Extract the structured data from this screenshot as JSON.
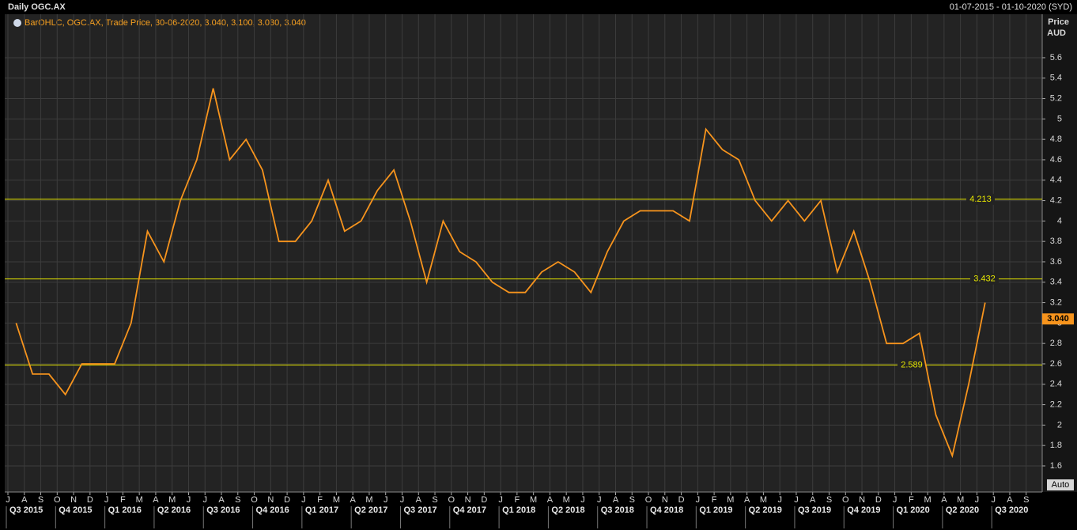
{
  "chart_data": {
    "type": "line",
    "title": "Daily OGC.AX",
    "date_range": "01-07-2015 - 01-10-2020 (SYD)",
    "legend_text": "BarOHLC, OGC.AX, Trade Price, 30-06-2020, 3.040, 3.100, 3.030, 3.040",
    "y_label": "Price",
    "y_unit": "AUD",
    "scale_mode": "Auto",
    "categories": [
      "J",
      "A",
      "S",
      "O",
      "N",
      "D",
      "J",
      "F",
      "M",
      "A",
      "M",
      "J",
      "J",
      "A",
      "S",
      "O",
      "N",
      "D",
      "J",
      "F",
      "M",
      "A",
      "M",
      "J",
      "J",
      "A",
      "S",
      "O",
      "N",
      "D",
      "J",
      "F",
      "M",
      "A",
      "M",
      "J",
      "J",
      "A",
      "S",
      "O",
      "N",
      "D",
      "J",
      "F",
      "M",
      "A",
      "M",
      "J",
      "J",
      "A",
      "S",
      "O",
      "N",
      "D",
      "J",
      "F",
      "M",
      "A",
      "M",
      "J",
      "J",
      "A",
      "S"
    ],
    "quarters": [
      "Q3 2015",
      "Q4 2015",
      "Q1 2016",
      "Q2 2016",
      "Q3 2016",
      "Q4 2016",
      "Q1 2017",
      "Q2 2017",
      "Q3 2017",
      "Q4 2017",
      "Q1 2018",
      "Q2 2018",
      "Q3 2018",
      "Q4 2018",
      "Q1 2019",
      "Q2 2019",
      "Q3 2019",
      "Q4 2019",
      "Q1 2020",
      "Q2 2020",
      "Q3 2020"
    ],
    "series": [
      {
        "name": "OGC.AX",
        "color": "#f7941d",
        "values": [
          3.0,
          2.5,
          2.5,
          2.3,
          2.6,
          2.6,
          2.6,
          3.0,
          3.9,
          3.6,
          4.2,
          4.6,
          5.3,
          4.6,
          4.8,
          4.5,
          3.8,
          3.8,
          4.0,
          4.4,
          3.9,
          4.0,
          4.3,
          4.5,
          4.0,
          3.4,
          4.0,
          3.7,
          3.6,
          3.4,
          3.3,
          3.3,
          3.5,
          3.6,
          3.5,
          3.3,
          3.7,
          4.0,
          4.1,
          4.1,
          4.1,
          4.0,
          4.9,
          4.7,
          4.6,
          4.2,
          4.0,
          4.2,
          4.0,
          4.2,
          3.5,
          3.9,
          3.4,
          2.8,
          2.8,
          2.9,
          2.1,
          1.7,
          2.4,
          3.2,
          null,
          null,
          null
        ]
      }
    ],
    "hlines": [
      {
        "value": 4.213,
        "color": "#e6e600"
      },
      {
        "value": 3.432,
        "color": "#e6e600"
      },
      {
        "value": 2.589,
        "color": "#e6e600"
      }
    ],
    "last": {
      "value": 3.04,
      "label": "3.040",
      "color": "#f7941d"
    },
    "ylim": [
      1.344,
      6.026
    ],
    "yticks": [
      1.6,
      1.8,
      2,
      2.2,
      2.4,
      2.6,
      2.8,
      3,
      3.2,
      3.4,
      3.6,
      3.8,
      4,
      4.2,
      4.4,
      4.6,
      4.8,
      5,
      5.2,
      5.4,
      5.6
    ],
    "grid": true
  }
}
